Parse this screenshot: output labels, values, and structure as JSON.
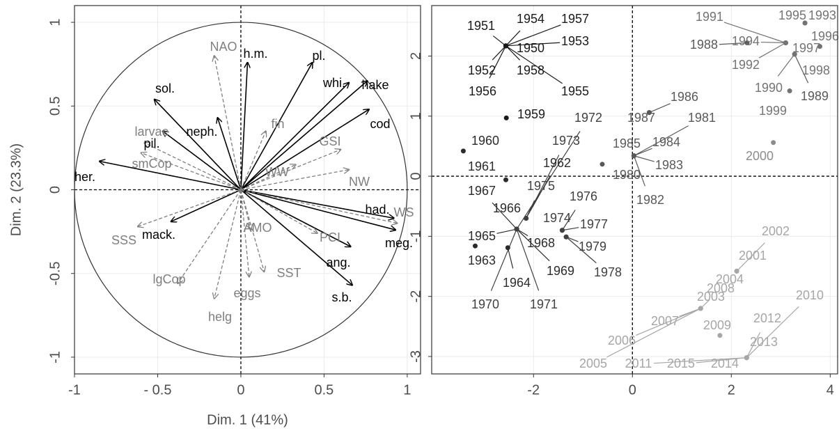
{
  "chart_data": [
    {
      "type": "arrows",
      "xlabel": "Dim. 1 (41%)",
      "ylabel": "Dim. 2 (23.3%)",
      "labels": [
        "her.",
        "sol.",
        "pil.",
        "neph.",
        "h.m.",
        "pl.",
        "whi.",
        "hake",
        "cod",
        "had.",
        "meg.",
        "ang.",
        "s.b.",
        "mack.",
        "NAO",
        "fin",
        "larvae",
        "smCop",
        "GSI",
        "WW",
        "NW",
        "WS",
        "PCI",
        "AMO",
        "SST",
        "eggs",
        "helg",
        "lgCop",
        "SSS"
      ],
      "x": [
        -0.85,
        -0.52,
        -0.47,
        -0.14,
        0.04,
        0.43,
        0.65,
        0.76,
        0.77,
        0.92,
        0.93,
        0.66,
        0.67,
        -0.42,
        -0.16,
        0.15,
        -0.58,
        -0.6,
        0.6,
        0.33,
        0.65,
        0.94,
        0.46,
        0.06,
        0.14,
        0.05,
        -0.16,
        -0.38,
        -0.62
      ],
      "values": [
        0.17,
        0.54,
        0.35,
        0.43,
        0.76,
        0.76,
        0.64,
        0.65,
        0.48,
        -0.17,
        -0.24,
        -0.34,
        -0.57,
        -0.19,
        0.8,
        0.35,
        0.28,
        0.22,
        0.24,
        0.15,
        0.12,
        -0.2,
        -0.26,
        -0.24,
        -0.49,
        -0.52,
        -0.65,
        -0.56,
        -0.22
      ],
      "colors": [
        "#000000",
        "#000000",
        "#000000",
        "#000000",
        "#000000",
        "#000000",
        "#000000",
        "#000000",
        "#000000",
        "#000000",
        "#000000",
        "#000000",
        "#000000",
        "#000000",
        "#7f7f7f",
        "#7f7f7f",
        "#7f7f7f",
        "#7f7f7f",
        "#7f7f7f",
        "#7f7f7f",
        "#7f7f7f",
        "#7f7f7f",
        "#7f7f7f",
        "#7f7f7f",
        "#7f7f7f",
        "#7f7f7f",
        "#7f7f7f",
        "#7f7f7f",
        "#7f7f7f"
      ],
      "line_styles": [
        "solid",
        "solid",
        "solid",
        "solid",
        "solid",
        "solid",
        "solid",
        "solid",
        "solid",
        "solid",
        "solid",
        "solid",
        "solid",
        "solid",
        "dashed",
        "dashed",
        "dashed",
        "dashed",
        "dashed",
        "dashed",
        "dashed",
        "dashed",
        "dashed",
        "dashed",
        "dashed",
        "dashed",
        "dashed",
        "dashed",
        "dashed"
      ],
      "xlim": [
        -1.0,
        1.08
      ],
      "ylim": [
        -1.1,
        1.1
      ],
      "xticks": [
        -1,
        {
          "value": -0.5,
          "label": "- 0.5"
        },
        0,
        0.5,
        1
      ],
      "yticks": [
        -1,
        -0.5,
        0,
        0.5,
        1
      ],
      "grid": true
    },
    {
      "type": "scatter",
      "labels": [
        "1950",
        "1951",
        "1952",
        "1953",
        "1954",
        "1955",
        "1956",
        "1957",
        "1958",
        "1959",
        "1960",
        "1961",
        "1962",
        "1963",
        "1964",
        "1965",
        "1966",
        "1967",
        "1968",
        "1969",
        "1970",
        "1971",
        "1972",
        "1973",
        "1974",
        "1975",
        "1976",
        "1977",
        "1978",
        "1979",
        "1980",
        "1981",
        "1982",
        "1983",
        "1984",
        "1985",
        "1986",
        "1987",
        "1988",
        "1989",
        "1990",
        "1991",
        "1992",
        "1993",
        "1994",
        "1995",
        "1996",
        "1997",
        "1998",
        "1999",
        "2000",
        "2001",
        "2002",
        "2003",
        "2004",
        "2005",
        "2006",
        "2007",
        "2008",
        "2009",
        "2010",
        "2011",
        "2012",
        "2013",
        "2014",
        "2015"
      ],
      "x": [
        -2.56,
        -2.56,
        -2.56,
        -2.56,
        -2.56,
        -2.56,
        -2.56,
        -2.56,
        -2.56,
        -2.55,
        -3.42,
        -2.56,
        -2.15,
        -3.18,
        -2.52,
        -2.34,
        -2.34,
        -2.34,
        -2.34,
        -2.34,
        -2.34,
        -2.34,
        -2.34,
        -2.15,
        -1.42,
        -2.15,
        -1.42,
        -1.42,
        -1.34,
        -1.34,
        -0.61,
        0.03,
        0.03,
        0.03,
        0.03,
        0.03,
        0.34,
        0.34,
        2.32,
        3.28,
        3.28,
        3.1,
        3.1,
        3.49,
        3.1,
        3.49,
        3.79,
        3.1,
        3.79,
        3.18,
        2.85,
        2.11,
        2.11,
        1.38,
        2.11,
        1.38,
        1.38,
        1.38,
        1.38,
        1.77,
        2.31,
        2.31,
        2.31,
        2.31,
        2.31,
        2.31
      ],
      "values": [
        2.17,
        2.17,
        2.17,
        2.17,
        2.17,
        2.17,
        2.17,
        2.17,
        2.17,
        0.97,
        0.42,
        -0.06,
        -0.7,
        -1.16,
        -1.19,
        -0.88,
        -0.88,
        -0.88,
        -0.88,
        -0.88,
        -0.88,
        -0.88,
        -0.88,
        -0.7,
        -0.9,
        -0.7,
        -0.9,
        -0.9,
        -1.01,
        -1.01,
        0.2,
        0.34,
        0.34,
        0.34,
        0.34,
        0.34,
        1.06,
        1.06,
        2.22,
        2.03,
        2.03,
        2.22,
        2.22,
        2.55,
        2.22,
        2.55,
        2.16,
        2.22,
        2.16,
        1.42,
        0.56,
        -1.58,
        -1.58,
        -2.2,
        -1.58,
        -2.2,
        -2.2,
        -2.2,
        -2.2,
        -2.65,
        -3.02,
        -3.02,
        -3.02,
        -3.02,
        -3.02,
        -3.02
      ],
      "colors": [
        "#1a1a1a",
        "#1a1a1a",
        "#1a1a1a",
        "#1a1a1a",
        "#1a1a1a",
        "#1a1a1a",
        "#1a1a1a",
        "#1a1a1a",
        "#1a1a1a",
        "#1a1a1a",
        "#2b2b2b",
        "#2b2b2b",
        "#2b2b2b",
        "#2b2b2b",
        "#2b2b2b",
        "#2b2b2b",
        "#2b2b2b",
        "#2b2b2b",
        "#2b2b2b",
        "#2b2b2b",
        "#404040",
        "#404040",
        "#404040",
        "#404040",
        "#404040",
        "#404040",
        "#404040",
        "#404040",
        "#404040",
        "#404040",
        "#595959",
        "#595959",
        "#595959",
        "#595959",
        "#595959",
        "#595959",
        "#595959",
        "#595959",
        "#595959",
        "#595959",
        "#737373",
        "#737373",
        "#737373",
        "#737373",
        "#737373",
        "#737373",
        "#737373",
        "#737373",
        "#737373",
        "#737373",
        "#8c8c8c",
        "#a6a6a6",
        "#a6a6a6",
        "#a6a6a6",
        "#a6a6a6",
        "#a6a6a6",
        "#a6a6a6",
        "#a6a6a6",
        "#a6a6a6",
        "#a6a6a6",
        "#a6a6a6",
        "#a6a6a6",
        "#a6a6a6",
        "#a6a6a6",
        "#a6a6a6",
        "#a6a6a6"
      ],
      "xlim": [
        -4.06,
        4.15
      ],
      "ylim": [
        -3.29,
        2.84
      ],
      "xticks": [
        -2,
        0,
        2,
        4
      ],
      "yticks": [
        -3,
        -2,
        -1,
        0,
        1,
        2
      ],
      "grid": true
    }
  ]
}
